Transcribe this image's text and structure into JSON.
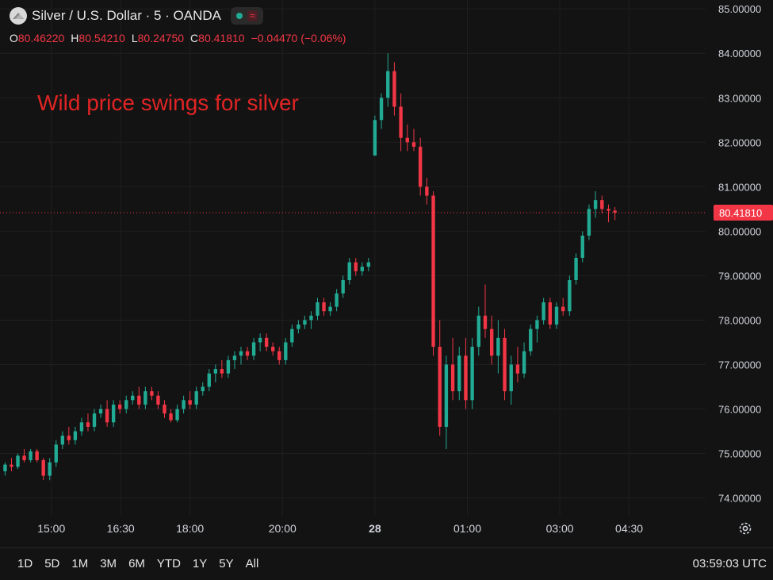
{
  "header": {
    "title": "Silver / U.S. Dollar · 5 · OANDA",
    "ohlc": {
      "o_label": "O",
      "o": "80.46220",
      "h_label": "H",
      "h": "80.54210",
      "l_label": "L",
      "l": "80.24750",
      "c_label": "C",
      "c": "80.41810",
      "change": "−0.04470 (−0.06%)"
    },
    "status_icons": [
      "market-open-dot-icon",
      "wave-icon"
    ]
  },
  "annotation": "Wild price swings for silver",
  "time_ranges": [
    "1D",
    "5D",
    "1M",
    "3M",
    "6M",
    "YTD",
    "1Y",
    "5Y",
    "All"
  ],
  "clock": "03:59:03 UTC",
  "colors": {
    "up": "#22ab94",
    "down": "#f23645",
    "background": "#131313",
    "annotation": "#e02424"
  },
  "chart_data": {
    "type": "candlestick",
    "y_axis": {
      "ticks": [
        "74.00000",
        "75.00000",
        "76.00000",
        "77.00000",
        "78.00000",
        "79.00000",
        "80.00000",
        "81.00000",
        "82.00000",
        "83.00000",
        "84.00000",
        "85.00000"
      ],
      "tick_values": [
        74,
        75,
        76,
        77,
        78,
        79,
        80,
        81,
        82,
        83,
        84,
        85
      ],
      "range": [
        73.6,
        85.2
      ]
    },
    "x_axis": {
      "labels": [
        "15:00",
        "16:30",
        "18:00",
        "20:00",
        "28",
        "01:00",
        "03:00",
        "04:30"
      ],
      "label_slots": [
        12,
        30,
        48,
        72,
        96,
        120,
        144,
        162
      ],
      "slot_count": 170
    },
    "last_price": "80.41810",
    "last_price_value": 80.4181,
    "candles": [
      [
        74.6,
        74.8,
        74.5,
        74.75
      ],
      [
        74.75,
        74.9,
        74.6,
        74.7
      ],
      [
        74.7,
        75.0,
        74.65,
        74.95
      ],
      [
        74.95,
        75.1,
        74.8,
        74.85
      ],
      [
        74.85,
        75.1,
        74.8,
        75.05
      ],
      [
        75.05,
        75.1,
        74.8,
        74.85
      ],
      [
        74.85,
        74.9,
        74.4,
        74.5
      ],
      [
        74.5,
        74.9,
        74.4,
        74.8
      ],
      [
        74.8,
        75.3,
        74.7,
        75.2
      ],
      [
        75.2,
        75.5,
        75.1,
        75.4
      ],
      [
        75.4,
        75.6,
        75.2,
        75.3
      ],
      [
        75.3,
        75.6,
        75.2,
        75.5
      ],
      [
        75.5,
        75.8,
        75.4,
        75.7
      ],
      [
        75.7,
        75.9,
        75.5,
        75.6
      ],
      [
        75.6,
        76.0,
        75.5,
        75.9
      ],
      [
        75.9,
        76.1,
        75.8,
        76.0
      ],
      [
        76.0,
        76.2,
        75.6,
        75.7
      ],
      [
        75.7,
        76.2,
        75.6,
        76.1
      ],
      [
        76.1,
        76.2,
        75.9,
        76.0
      ],
      [
        76.0,
        76.3,
        75.9,
        76.2
      ],
      [
        76.2,
        76.4,
        76.1,
        76.3
      ],
      [
        76.3,
        76.5,
        76.0,
        76.1
      ],
      [
        76.1,
        76.5,
        76.0,
        76.4
      ],
      [
        76.4,
        76.5,
        76.2,
        76.3
      ],
      [
        76.3,
        76.4,
        76.0,
        76.1
      ],
      [
        76.1,
        76.2,
        75.8,
        75.9
      ],
      [
        75.9,
        76.0,
        75.7,
        75.75
      ],
      [
        75.75,
        76.1,
        75.7,
        76.0
      ],
      [
        76.0,
        76.3,
        75.9,
        76.2
      ],
      [
        76.2,
        76.4,
        76.0,
        76.1
      ],
      [
        76.1,
        76.5,
        76.0,
        76.4
      ],
      [
        76.4,
        76.6,
        76.3,
        76.5
      ],
      [
        76.5,
        76.9,
        76.4,
        76.8
      ],
      [
        76.8,
        77.0,
        76.6,
        76.9
      ],
      [
        76.9,
        77.1,
        76.7,
        76.8
      ],
      [
        76.8,
        77.2,
        76.7,
        77.1
      ],
      [
        77.1,
        77.3,
        76.9,
        77.2
      ],
      [
        77.2,
        77.4,
        77.0,
        77.3
      ],
      [
        77.3,
        77.4,
        77.1,
        77.2
      ],
      [
        77.2,
        77.6,
        77.1,
        77.5
      ],
      [
        77.5,
        77.7,
        77.3,
        77.6
      ],
      [
        77.6,
        77.7,
        77.3,
        77.4
      ],
      [
        77.4,
        77.5,
        77.2,
        77.3
      ],
      [
        77.3,
        77.4,
        77.0,
        77.1
      ],
      [
        77.1,
        77.6,
        77.0,
        77.5
      ],
      [
        77.5,
        77.9,
        77.4,
        77.8
      ],
      [
        77.8,
        78.0,
        77.7,
        77.9
      ],
      [
        77.9,
        78.1,
        77.8,
        78.0
      ],
      [
        78.0,
        78.2,
        77.8,
        78.1
      ],
      [
        78.1,
        78.5,
        78.0,
        78.4
      ],
      [
        78.4,
        78.5,
        78.1,
        78.2
      ],
      [
        78.2,
        78.4,
        78.1,
        78.3
      ],
      [
        78.3,
        78.7,
        78.2,
        78.6
      ],
      [
        78.6,
        79.0,
        78.5,
        78.9
      ],
      [
        78.9,
        79.4,
        78.8,
        79.3
      ],
      [
        79.3,
        79.4,
        79.0,
        79.1
      ],
      [
        79.1,
        79.3,
        79.0,
        79.2
      ],
      [
        79.2,
        79.4,
        79.1,
        79.3
      ],
      [
        81.7,
        82.6,
        81.7,
        82.5
      ],
      [
        82.5,
        83.1,
        82.3,
        83.0
      ],
      [
        83.0,
        84.0,
        82.8,
        83.6
      ],
      [
        83.6,
        83.8,
        82.6,
        82.8
      ],
      [
        82.8,
        83.1,
        81.8,
        82.1
      ],
      [
        82.1,
        82.4,
        81.8,
        82.0
      ],
      [
        82.0,
        82.3,
        81.8,
        81.9
      ],
      [
        81.9,
        82.1,
        80.8,
        81.0
      ],
      [
        81.0,
        81.2,
        80.6,
        80.8
      ],
      [
        80.8,
        80.9,
        77.2,
        77.4
      ],
      [
        77.4,
        78.0,
        75.4,
        75.6
      ],
      [
        75.6,
        77.2,
        75.1,
        77.0
      ],
      [
        77.0,
        77.6,
        76.2,
        76.4
      ],
      [
        76.4,
        77.4,
        76.2,
        77.2
      ],
      [
        77.2,
        77.6,
        76.0,
        76.2
      ],
      [
        76.2,
        77.6,
        76.0,
        77.4
      ],
      [
        77.4,
        78.3,
        77.2,
        78.1
      ],
      [
        78.1,
        78.8,
        77.6,
        77.8
      ],
      [
        77.8,
        78.1,
        77.0,
        77.2
      ],
      [
        77.2,
        78.0,
        76.8,
        77.6
      ],
      [
        77.6,
        77.8,
        76.2,
        76.4
      ],
      [
        76.4,
        77.2,
        76.1,
        77.0
      ],
      [
        77.0,
        77.4,
        76.6,
        76.8
      ],
      [
        76.8,
        77.5,
        76.7,
        77.3
      ],
      [
        77.3,
        77.9,
        77.2,
        77.8
      ],
      [
        77.8,
        78.1,
        77.5,
        78.0
      ],
      [
        78.0,
        78.5,
        77.9,
        78.4
      ],
      [
        78.4,
        78.5,
        77.8,
        77.9
      ],
      [
        77.9,
        78.4,
        77.8,
        78.3
      ],
      [
        78.3,
        78.5,
        78.1,
        78.2
      ],
      [
        78.2,
        79.0,
        78.1,
        78.9
      ],
      [
        78.9,
        79.5,
        78.8,
        79.4
      ],
      [
        79.4,
        80.0,
        79.3,
        79.9
      ],
      [
        79.9,
        80.6,
        79.8,
        80.5
      ],
      [
        80.5,
        80.9,
        80.3,
        80.7
      ],
      [
        80.7,
        80.8,
        80.4,
        80.5
      ],
      [
        80.5,
        80.6,
        80.2,
        80.46
      ],
      [
        80.4622,
        80.5421,
        80.2475,
        80.4181
      ]
    ]
  }
}
